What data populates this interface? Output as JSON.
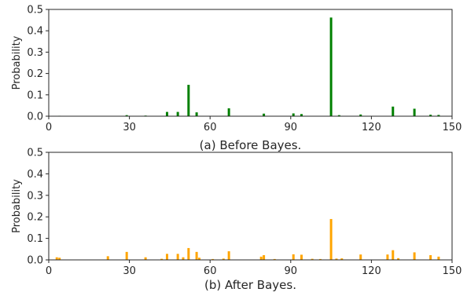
{
  "chart_data": [
    {
      "type": "bar",
      "caption": "(a) Before Bayes.",
      "ylabel": "Probability",
      "xlabel": "",
      "xlim": [
        0,
        150
      ],
      "ylim": [
        0,
        0.5
      ],
      "xticks": [
        "0",
        "30",
        "60",
        "90",
        "120",
        "150"
      ],
      "yticks": [
        "0.0",
        "0.1",
        "0.2",
        "0.3",
        "0.4",
        "0.5"
      ],
      "color": "#008000",
      "grid": false,
      "points": [
        {
          "x": 4,
          "y": 0.002
        },
        {
          "x": 29,
          "y": 0.005
        },
        {
          "x": 36,
          "y": 0.003
        },
        {
          "x": 44,
          "y": 0.02
        },
        {
          "x": 48,
          "y": 0.02
        },
        {
          "x": 52,
          "y": 0.147
        },
        {
          "x": 55,
          "y": 0.018
        },
        {
          "x": 67,
          "y": 0.037
        },
        {
          "x": 80,
          "y": 0.012
        },
        {
          "x": 91,
          "y": 0.013
        },
        {
          "x": 94,
          "y": 0.01
        },
        {
          "x": 105,
          "y": 0.462
        },
        {
          "x": 108,
          "y": 0.005
        },
        {
          "x": 116,
          "y": 0.008
        },
        {
          "x": 128,
          "y": 0.045
        },
        {
          "x": 136,
          "y": 0.035
        },
        {
          "x": 142,
          "y": 0.007
        },
        {
          "x": 145,
          "y": 0.006
        }
      ]
    },
    {
      "type": "bar",
      "caption": "(b) After Bayes.",
      "ylabel": "Probability",
      "xlabel": "",
      "xlim": [
        0,
        150
      ],
      "ylim": [
        0,
        0.5
      ],
      "xticks": [
        "0",
        "30",
        "60",
        "90",
        "120",
        "150"
      ],
      "yticks": [
        "0.0",
        "0.1",
        "0.2",
        "0.3",
        "0.4",
        "0.5"
      ],
      "color": "#FFA500",
      "grid": false,
      "points": [
        {
          "x": 3,
          "y": 0.012
        },
        {
          "x": 4,
          "y": 0.01
        },
        {
          "x": 22,
          "y": 0.017
        },
        {
          "x": 29,
          "y": 0.037
        },
        {
          "x": 36,
          "y": 0.012
        },
        {
          "x": 42,
          "y": 0.005
        },
        {
          "x": 44,
          "y": 0.028
        },
        {
          "x": 48,
          "y": 0.028
        },
        {
          "x": 50,
          "y": 0.012
        },
        {
          "x": 52,
          "y": 0.055
        },
        {
          "x": 55,
          "y": 0.037
        },
        {
          "x": 56,
          "y": 0.01
        },
        {
          "x": 61,
          "y": 0.004
        },
        {
          "x": 65,
          "y": 0.006
        },
        {
          "x": 67,
          "y": 0.04
        },
        {
          "x": 79,
          "y": 0.015
        },
        {
          "x": 80,
          "y": 0.022
        },
        {
          "x": 84,
          "y": 0.004
        },
        {
          "x": 91,
          "y": 0.026
        },
        {
          "x": 94,
          "y": 0.024
        },
        {
          "x": 98,
          "y": 0.005
        },
        {
          "x": 101,
          "y": 0.004
        },
        {
          "x": 105,
          "y": 0.19
        },
        {
          "x": 107,
          "y": 0.006
        },
        {
          "x": 109,
          "y": 0.007
        },
        {
          "x": 116,
          "y": 0.025
        },
        {
          "x": 126,
          "y": 0.025
        },
        {
          "x": 128,
          "y": 0.045
        },
        {
          "x": 130,
          "y": 0.008
        },
        {
          "x": 136,
          "y": 0.035
        },
        {
          "x": 142,
          "y": 0.022
        },
        {
          "x": 145,
          "y": 0.015
        }
      ]
    }
  ]
}
